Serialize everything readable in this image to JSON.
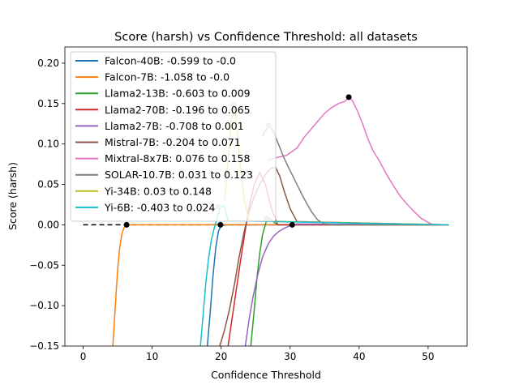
{
  "chart_data": {
    "type": "line",
    "title": "Score (harsh) vs Confidence Threshold: all datasets",
    "xlabel": "Confidence Threshold",
    "ylabel": "Score (harsh)",
    "xlim": [
      -2.65,
      55.65
    ],
    "ylim": [
      -0.15,
      0.22
    ],
    "xticks": [
      0,
      10,
      20,
      30,
      40,
      50
    ],
    "xtick_labels": [
      "0",
      "10",
      "20",
      "30",
      "40",
      "50"
    ],
    "yticks": [
      -0.15,
      -0.1,
      -0.05,
      0.0,
      0.05,
      0.1,
      0.15,
      0.2
    ],
    "ytick_labels": [
      "−0.15",
      "−0.10",
      "−0.05",
      "0.00",
      "0.05",
      "0.10",
      "0.15",
      "0.20"
    ],
    "grid": false,
    "legend_position": "top-left",
    "baseline": {
      "y": 0.0,
      "x": [
        0,
        53
      ],
      "style": "dashed",
      "color": "#000000"
    },
    "series": [
      {
        "name": "Falcon-40B: -0.599 to -0.0",
        "color": "#1f77b4",
        "x": [
          18.0,
          18.4,
          18.8,
          19.2,
          19.6,
          20.0,
          21.0,
          53.0
        ],
        "y": [
          -0.15,
          -0.11,
          -0.065,
          -0.03,
          -0.008,
          -0.001,
          0.0,
          0.0
        ],
        "markers": [
          {
            "x": 19.9,
            "y": 0.0,
            "color": "#000000"
          },
          {
            "x": 19.6,
            "y": 0.022,
            "color": "#bbbbbb"
          }
        ]
      },
      {
        "name": "Falcon-7B: -1.058 to -0.0",
        "color": "#ff7f0e",
        "x": [
          4.3,
          4.7,
          5.0,
          5.3,
          5.6,
          5.9,
          6.2,
          7.0,
          53.0
        ],
        "y": [
          -0.15,
          -0.095,
          -0.055,
          -0.028,
          -0.012,
          -0.004,
          -0.001,
          0.0,
          0.0
        ],
        "markers": [
          {
            "x": 6.3,
            "y": 0.0,
            "color": "#000000"
          }
        ]
      },
      {
        "name": "Llama2-13B: -0.603 to 0.009",
        "color": "#2ca02c",
        "x": [
          24.3,
          24.8,
          25.2,
          25.6,
          26.0,
          26.5,
          26.9,
          27.5,
          28.2,
          53.0
        ],
        "y": [
          -0.15,
          -0.105,
          -0.065,
          -0.035,
          -0.012,
          0.003,
          0.009,
          0.004,
          0.0,
          0.0
        ],
        "markers": [
          {
            "x": 26.6,
            "y": 0.008,
            "color": "#bbbbbb"
          }
        ]
      },
      {
        "name": "Llama2-70B: -0.196 to 0.065",
        "color": "#d62728",
        "x": [
          21.0,
          21.6,
          22.2,
          22.8,
          23.4,
          24.0,
          24.8,
          25.6,
          26.4,
          27.3,
          28.2,
          53.0
        ],
        "y": [
          -0.15,
          -0.115,
          -0.08,
          -0.045,
          -0.012,
          0.02,
          0.05,
          0.065,
          0.05,
          0.02,
          0.0,
          0.0
        ],
        "markers": [
          {
            "x": 23.4,
            "y": 0.065,
            "color": "#bbbbbb"
          }
        ]
      },
      {
        "name": "Llama2-7B: -0.708 to 0.001",
        "color": "#9467bd",
        "x": [
          23.5,
          24.0,
          24.6,
          25.3,
          26.0,
          26.8,
          27.6,
          28.4,
          29.2,
          30.0,
          31.0,
          53.0
        ],
        "y": [
          -0.15,
          -0.12,
          -0.09,
          -0.062,
          -0.04,
          -0.024,
          -0.014,
          -0.008,
          -0.004,
          -0.001,
          0.001,
          0.0
        ],
        "markers": [
          {
            "x": 30.3,
            "y": 0.0,
            "color": "#000000"
          }
        ]
      },
      {
        "name": "Mistral-7B: -0.204 to 0.071",
        "color": "#8c564b",
        "x": [
          19.8,
          20.5,
          21.2,
          21.9,
          22.6,
          23.3,
          24.0,
          24.8,
          25.6,
          26.4,
          27.2,
          27.9,
          28.5,
          29.2,
          30.0,
          31.0,
          53.0
        ],
        "y": [
          -0.15,
          -0.13,
          -0.105,
          -0.075,
          -0.04,
          -0.01,
          0.015,
          0.035,
          0.05,
          0.062,
          0.07,
          0.071,
          0.06,
          0.04,
          0.02,
          0.004,
          0.0
        ],
        "markers": []
      },
      {
        "name": "Mixtral-8x7B: 0.076 to 0.158",
        "color": "#e377c2",
        "x": [
          26.8,
          28.0,
          29.5,
          31.0,
          32.0,
          33.0,
          34.0,
          35.0,
          36.0,
          37.0,
          38.0,
          38.5,
          39.0,
          39.8,
          40.5,
          41.2,
          42.0,
          43.0,
          44.0,
          45.0,
          46.0,
          47.0,
          48.0,
          49.0,
          50.0,
          50.5,
          51.0,
          53.0
        ],
        "y": [
          0.08,
          0.083,
          0.086,
          0.095,
          0.108,
          0.118,
          0.128,
          0.138,
          0.145,
          0.15,
          0.153,
          0.158,
          0.154,
          0.14,
          0.125,
          0.108,
          0.092,
          0.078,
          0.062,
          0.048,
          0.035,
          0.025,
          0.016,
          0.008,
          0.003,
          0.001,
          0.0,
          0.0
        ],
        "markers": [
          {
            "x": 38.5,
            "y": 0.158,
            "color": "#000000"
          }
        ]
      },
      {
        "name": "SOLAR-10.7B: 0.031 to 0.123",
        "color": "#7f7f7f",
        "x": [
          26.0,
          26.5,
          27.0,
          27.6,
          28.3,
          29.0,
          29.7,
          30.4,
          31.1,
          31.8,
          32.5,
          33.2,
          34.0,
          35.0,
          36.0,
          53.0
        ],
        "y": [
          0.11,
          0.118,
          0.123,
          0.115,
          0.1,
          0.085,
          0.072,
          0.06,
          0.048,
          0.036,
          0.025,
          0.015,
          0.006,
          0.001,
          0.0,
          0.0
        ],
        "markers": [
          {
            "x": 26.9,
            "y": 0.123,
            "color": "#bbbbbb"
          }
        ]
      },
      {
        "name": "Yi-34B: 0.03 to 0.148",
        "color": "#bcbd22",
        "x": [
          20.5,
          21.0,
          21.5,
          21.9,
          22.3,
          22.8,
          23.4,
          24.0,
          53.0
        ],
        "y": [
          0.03,
          0.08,
          0.13,
          0.148,
          0.12,
          0.07,
          0.03,
          0.005,
          0.0
        ],
        "markers": [
          {
            "x": 21.8,
            "y": 0.148,
            "color": "#bbbbbb"
          }
        ]
      },
      {
        "name": "Yi-6B: -0.403 to 0.024",
        "color": "#17becf",
        "x": [
          17.0,
          17.4,
          17.8,
          18.2,
          18.6,
          19.0,
          19.4,
          19.8,
          20.4,
          21.0,
          53.0
        ],
        "y": [
          -0.15,
          -0.11,
          -0.07,
          -0.04,
          -0.018,
          -0.004,
          0.008,
          0.02,
          0.024,
          0.005,
          0.0
        ],
        "markers": []
      }
    ]
  }
}
